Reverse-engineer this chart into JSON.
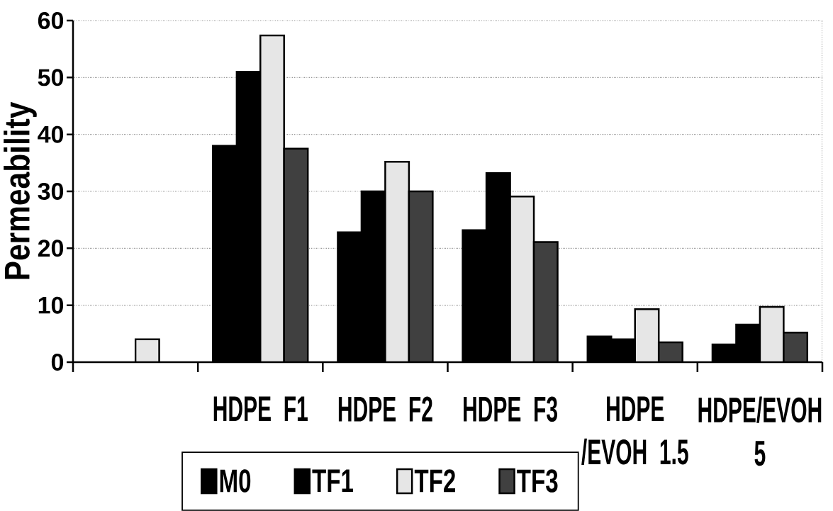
{
  "chart_data": {
    "type": "bar",
    "ylabel": "Permeability",
    "categories": [
      null,
      "HDPE F1",
      "HDPE F2",
      "HDPE F3",
      "HDPE /EVOH 1.5",
      "HDPE/EVOH 5"
    ],
    "series": [
      {
        "name": "M0",
        "color": "#000000",
        "values": [
          null,
          38,
          22.8,
          23.2,
          4.5,
          3.1
        ]
      },
      {
        "name": "TF1",
        "color": "#000000",
        "values": [
          null,
          51,
          30,
          33.2,
          4,
          6.6
        ]
      },
      {
        "name": "TF2",
        "color": "#e6e6e6",
        "values": [
          4,
          57.4,
          35.2,
          29.1,
          9.3,
          9.7
        ]
      },
      {
        "name": "TF3",
        "color": "#404040",
        "values": [
          null,
          37.5,
          30,
          21.1,
          3.5,
          5.2
        ]
      }
    ],
    "ylim": [
      0,
      60
    ],
    "yticks": [
      0,
      10,
      20,
      30,
      40,
      50,
      60
    ],
    "grid": "y",
    "legend": "bottom"
  }
}
